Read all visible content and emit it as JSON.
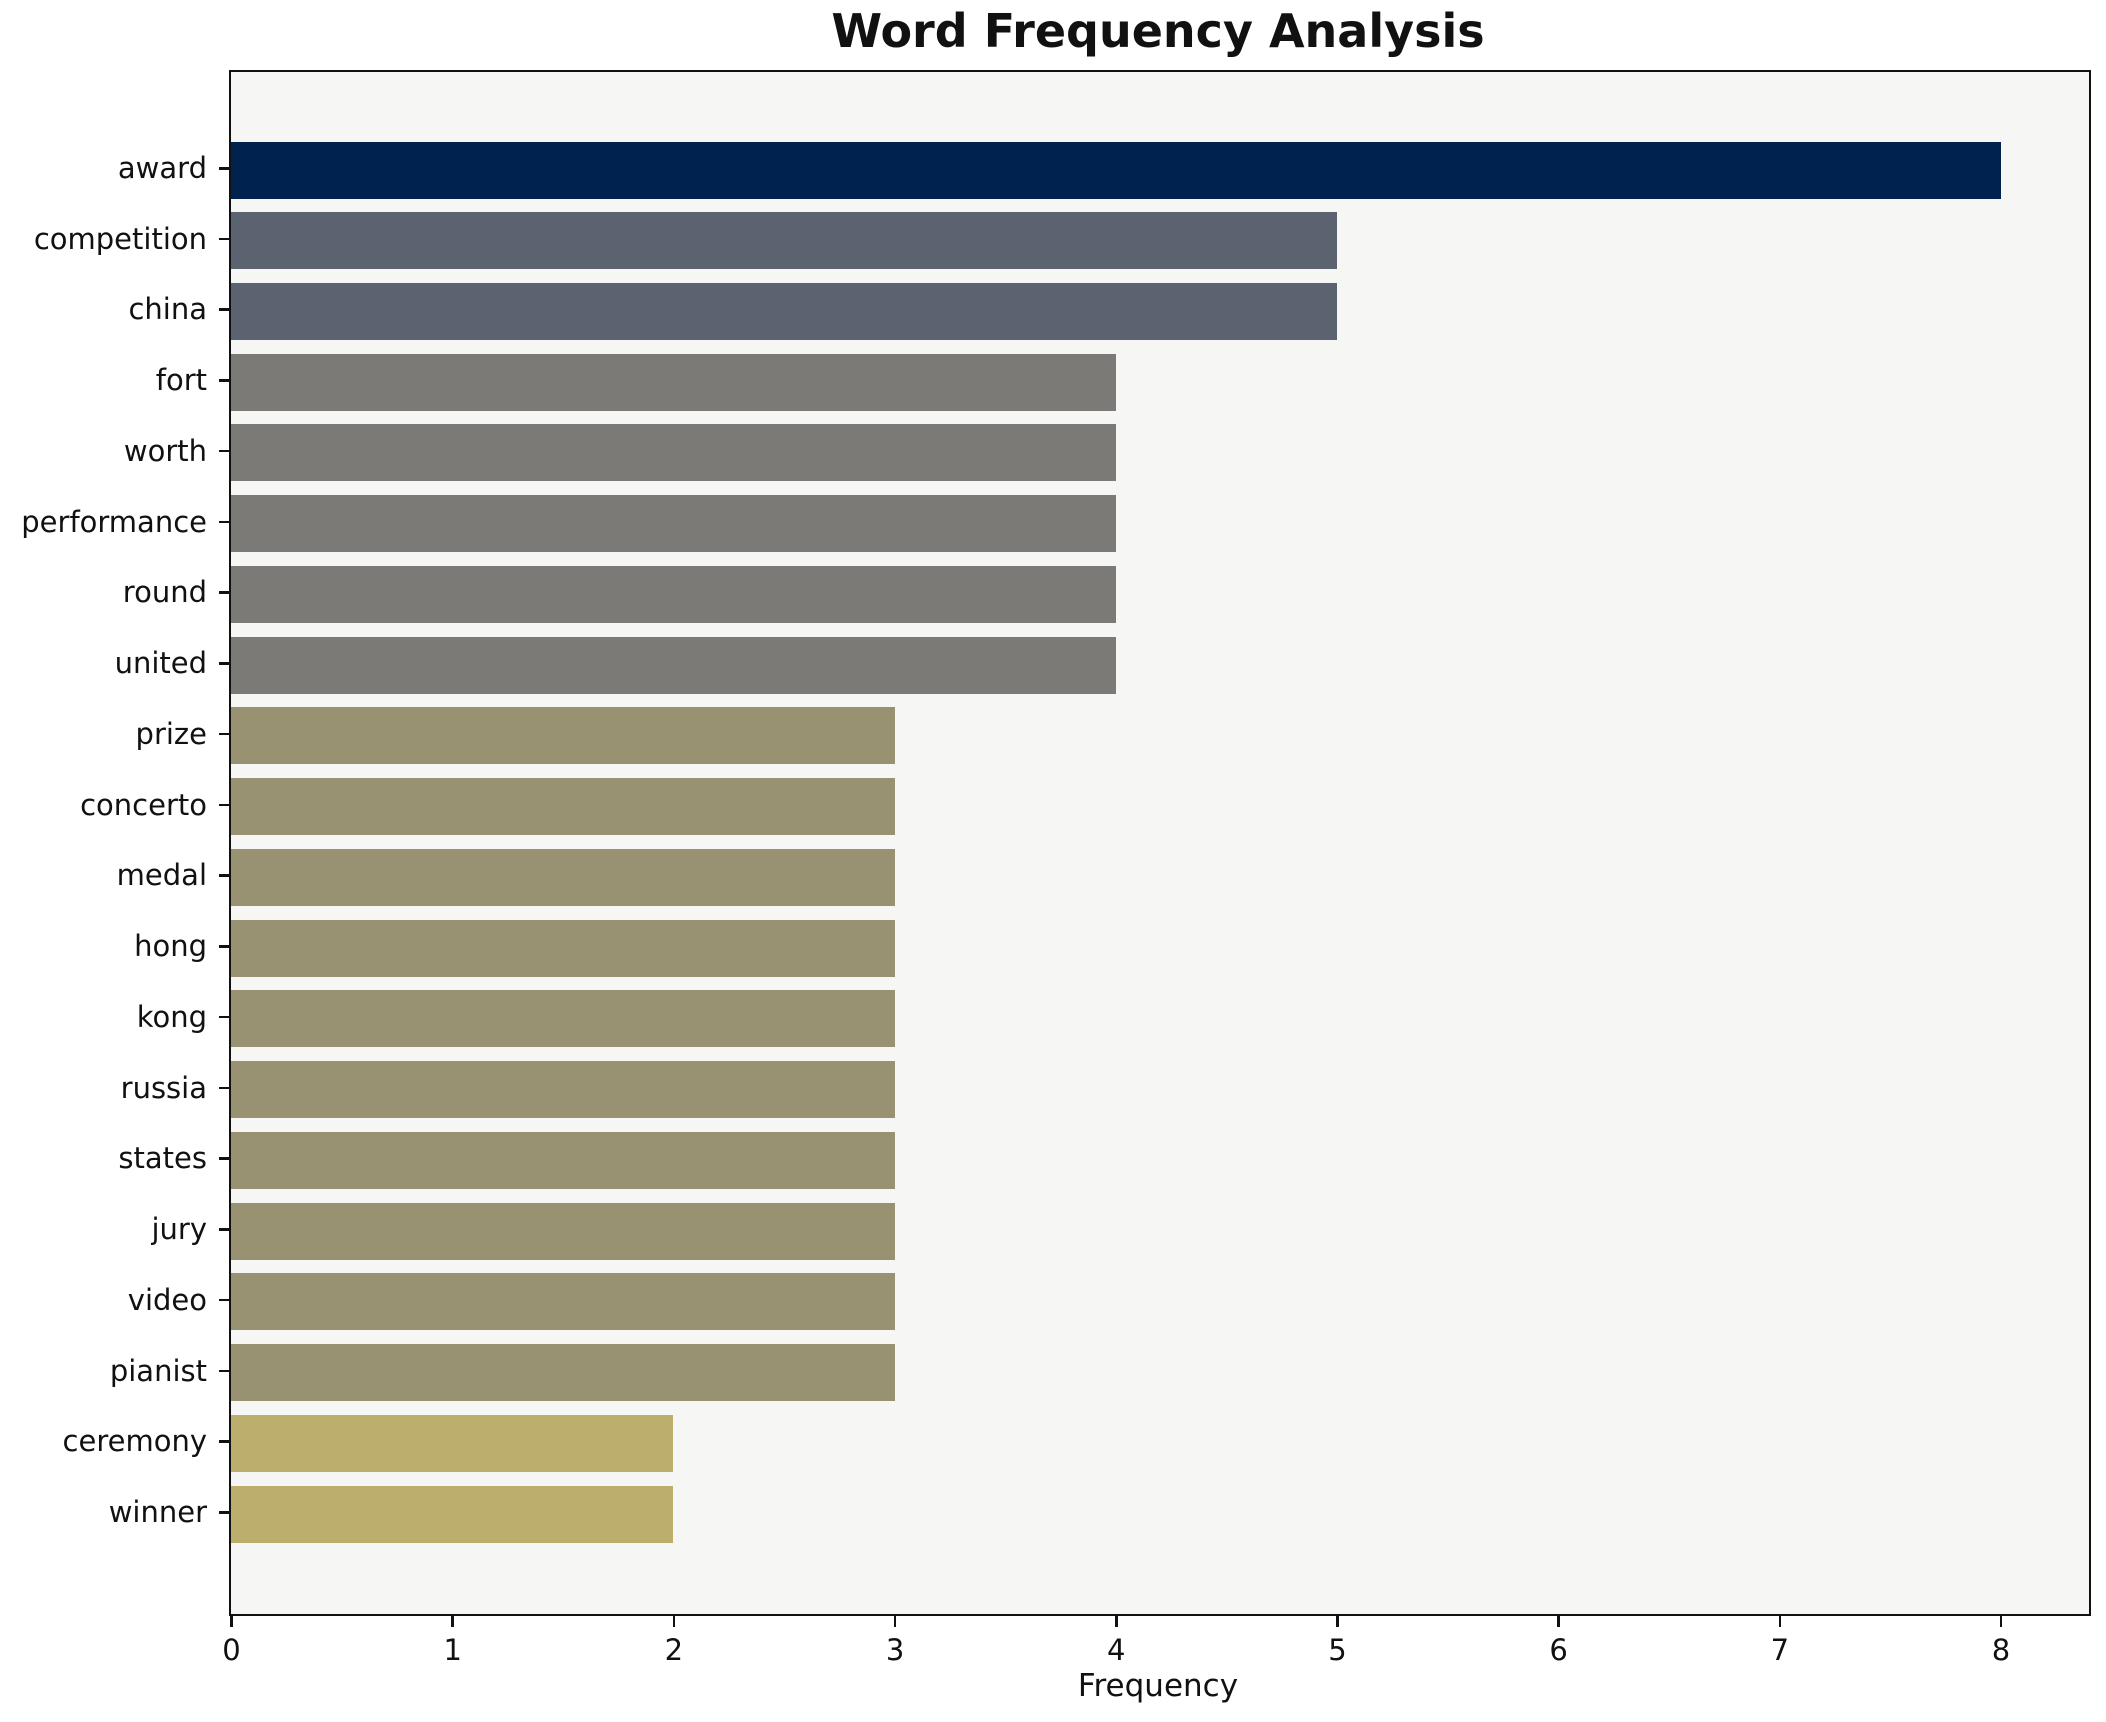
{
  "chart_data": {
    "type": "bar",
    "orientation": "horizontal",
    "title": "Word Frequency Analysis",
    "xlabel": "Frequency",
    "ylabel": "",
    "categories": [
      "award",
      "competition",
      "china",
      "fort",
      "worth",
      "performance",
      "round",
      "united",
      "prize",
      "concerto",
      "medal",
      "hong",
      "kong",
      "russia",
      "states",
      "jury",
      "video",
      "pianist",
      "ceremony",
      "winner"
    ],
    "values": [
      8,
      5,
      5,
      4,
      4,
      4,
      4,
      4,
      3,
      3,
      3,
      3,
      3,
      3,
      3,
      3,
      3,
      3,
      2,
      2
    ],
    "bar_colors": [
      "#00224e",
      "#5c6370",
      "#5c6370",
      "#7b7a76",
      "#7b7a76",
      "#7b7a76",
      "#7b7a76",
      "#7b7a76",
      "#999272",
      "#999272",
      "#999272",
      "#999272",
      "#999272",
      "#999272",
      "#999272",
      "#999272",
      "#999272",
      "#999272",
      "#bcae6c",
      "#bcae6c"
    ],
    "xlim": [
      0,
      8.4
    ],
    "xticks": [
      0,
      1,
      2,
      3,
      4,
      5,
      6,
      7,
      8
    ],
    "grid": false,
    "legend": "none",
    "plot_background": "#f6f6f5",
    "page_background": "#ffffff",
    "spine_color": "#111111",
    "text_color": "#111111"
  }
}
